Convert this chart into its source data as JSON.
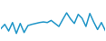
{
  "values": [
    3.8,
    5.2,
    3.0,
    5.8,
    2.2,
    5.5,
    2.5,
    4.8,
    5.2,
    5.5,
    5.8,
    6.0,
    5.8,
    6.5,
    5.5,
    4.5,
    6.8,
    9.0,
    7.0,
    5.5,
    8.5,
    7.2,
    4.5,
    8.8,
    6.0,
    3.5,
    5.8,
    3.2
  ],
  "line_color": "#2196c8",
  "linewidth": 1.1,
  "background_color": "#ffffff",
  "ylim_min": 0.0,
  "ylim_max": 13.0
}
